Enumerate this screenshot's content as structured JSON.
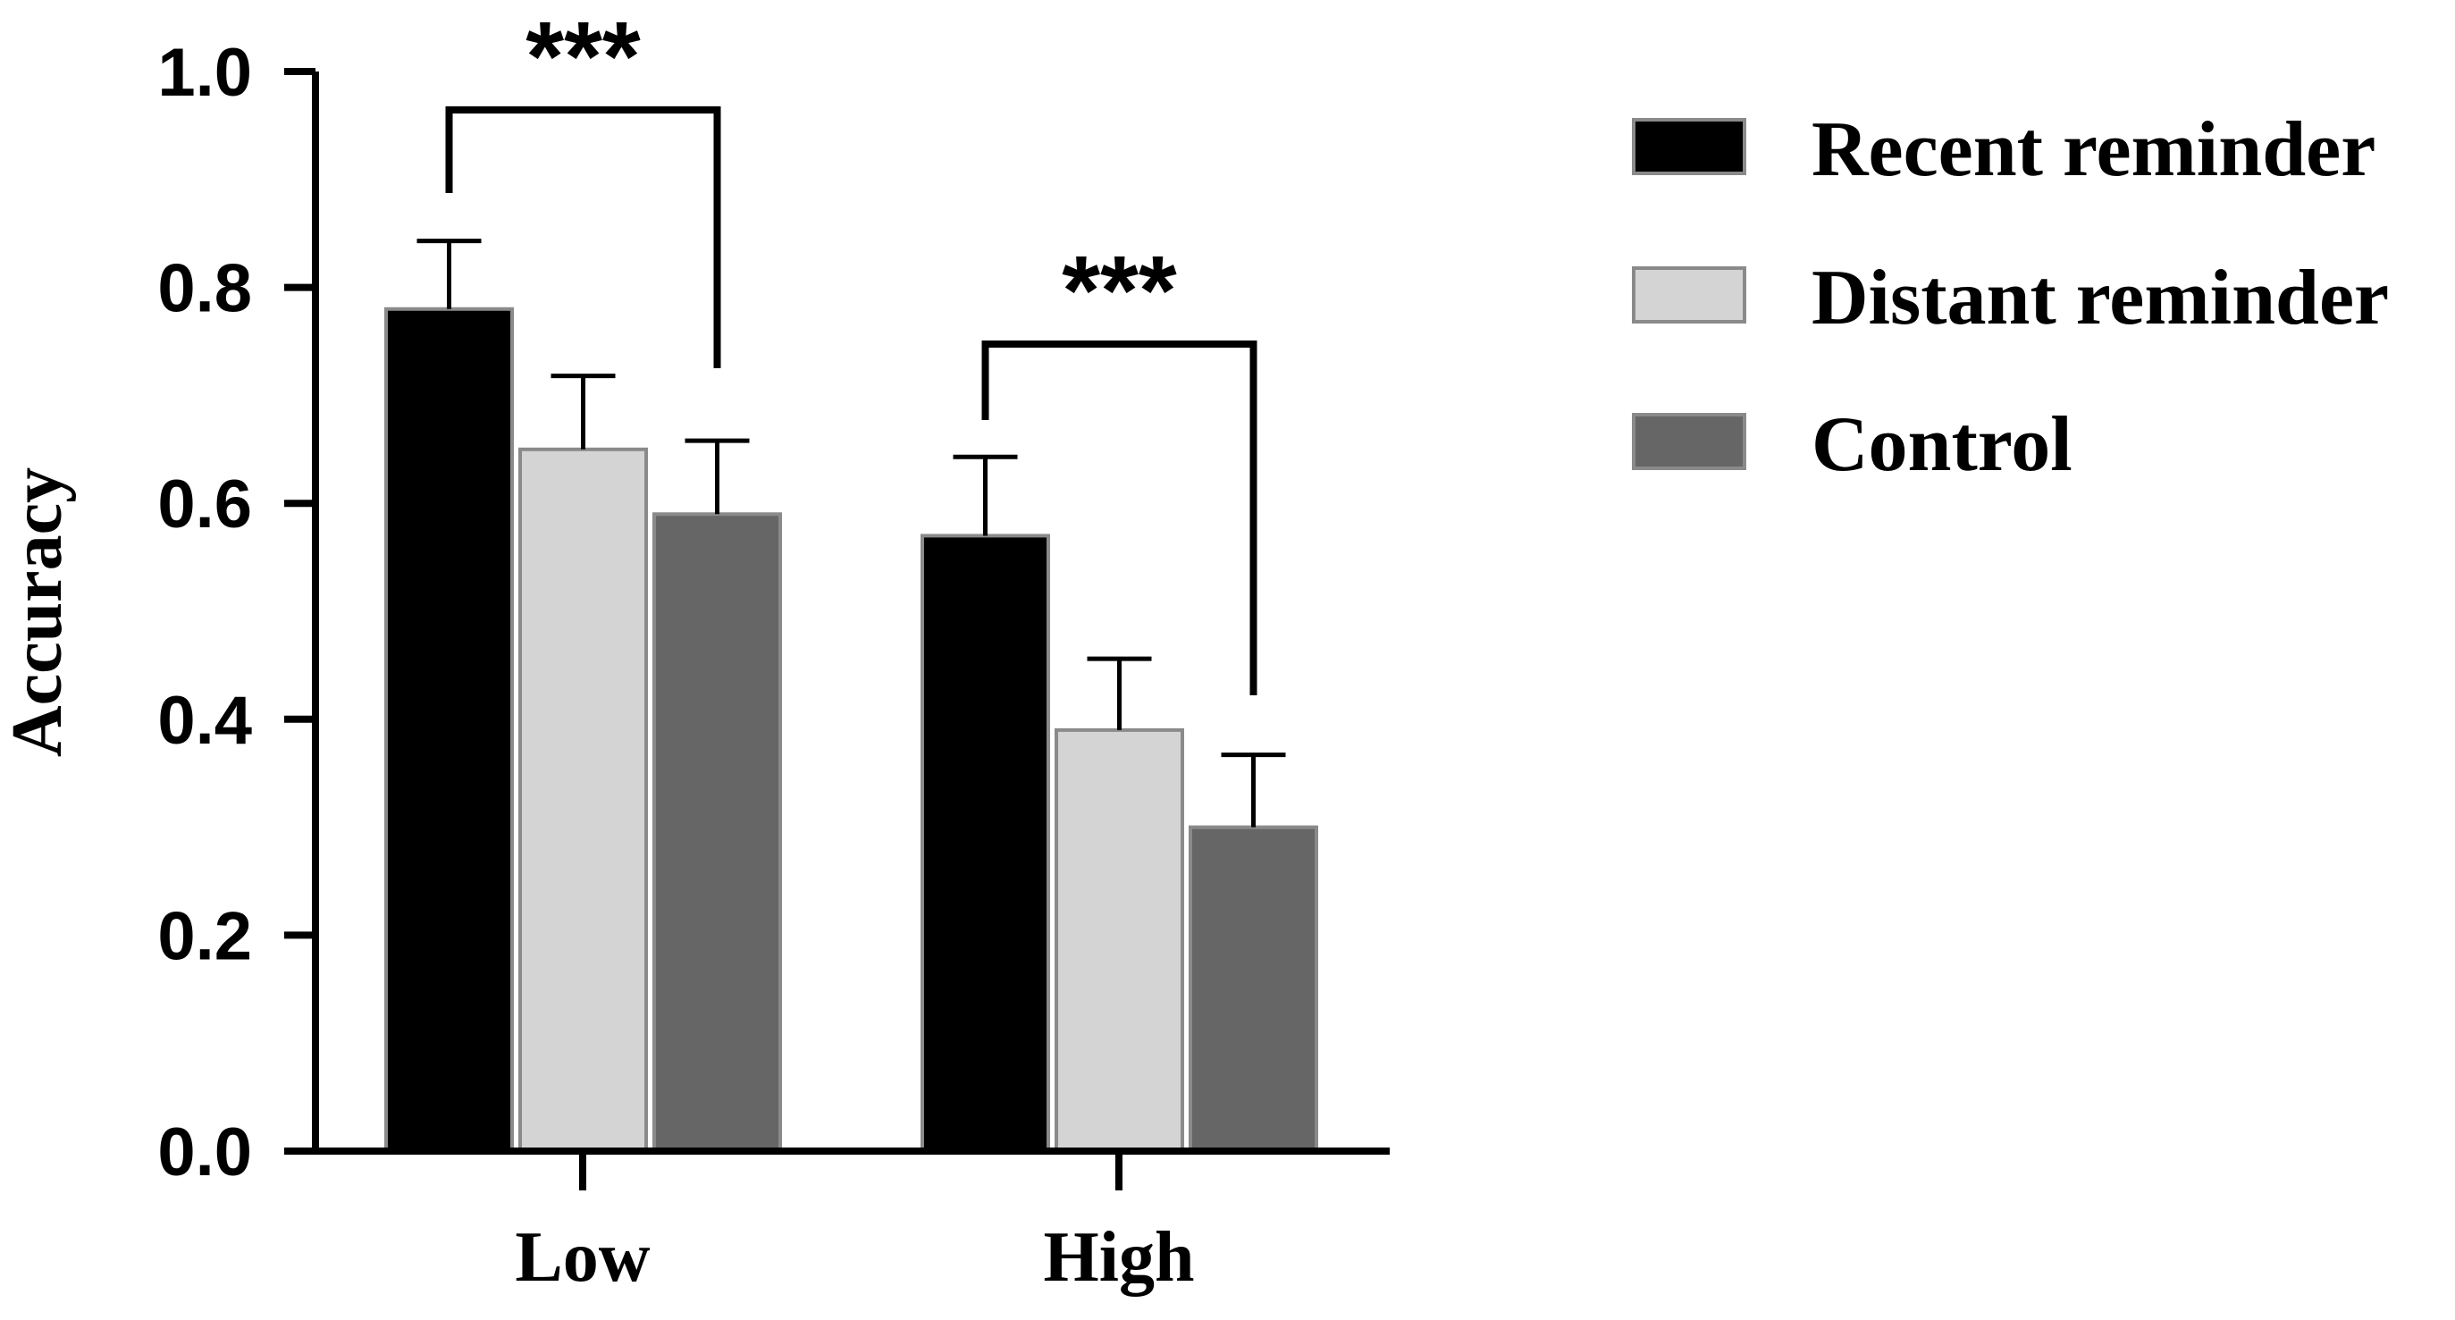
{
  "chart_data": {
    "type": "bar",
    "title": "",
    "xlabel": "",
    "ylabel": "Accuracy",
    "ylim": [
      0,
      1.0
    ],
    "yticks": [
      "0.0",
      "0.2",
      "0.4",
      "0.6",
      "0.8",
      "1.0"
    ],
    "categories": [
      "Low",
      "High"
    ],
    "series": [
      {
        "name": "Recent reminder",
        "color": "#000000",
        "values": [
          0.78,
          0.57
        ],
        "errors": [
          0.063,
          0.073
        ]
      },
      {
        "name": "Distant reminder",
        "color": "#d4d4d4",
        "values": [
          0.65,
          0.39
        ],
        "errors": [
          0.068,
          0.066
        ]
      },
      {
        "name": "Control",
        "color": "#666666",
        "values": [
          0.59,
          0.3
        ],
        "errors": [
          0.068,
          0.067
        ]
      }
    ],
    "annotations": [
      {
        "text": "***",
        "category": "Low",
        "from_series": "Recent reminder",
        "to_series": "Control"
      },
      {
        "text": "***",
        "category": "High",
        "from_series": "Recent reminder",
        "to_series": "Control"
      }
    ],
    "legend": "right"
  }
}
